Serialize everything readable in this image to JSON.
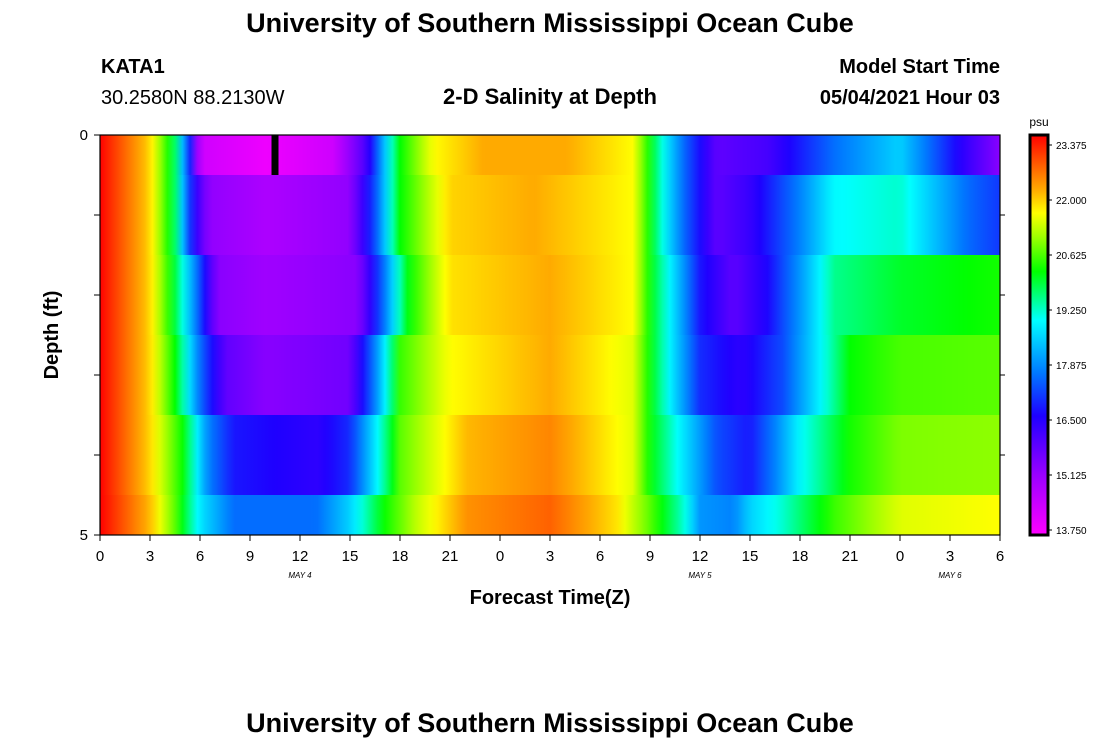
{
  "page": {
    "title_top": "University of Southern Mississippi Ocean Cube",
    "title_bottom": "University of Southern Mississippi Ocean Cube",
    "station_id": "KATA1",
    "station_coords": "30.2580N  88.2130W",
    "plot_title": "2-D Salinity at Depth",
    "model_start_label": "Model Start Time",
    "model_start_value": "05/04/2021 Hour 03"
  },
  "chart_data": {
    "type": "heatmap",
    "title": "2-D Salinity at Depth",
    "xlabel": "Forecast Time(Z)",
    "ylabel": "Depth (ft)",
    "x_tick_labels": [
      "0",
      "3",
      "6",
      "9",
      "12",
      "15",
      "18",
      "21",
      "0",
      "3",
      "6",
      "9",
      "12",
      "15",
      "18",
      "21",
      "0",
      "3",
      "6"
    ],
    "x_range_hours": [
      0,
      54
    ],
    "date_labels": [
      {
        "text": "MAY 4",
        "hour": 12
      },
      {
        "text": "MAY 5",
        "hour": 36
      },
      {
        "text": "MAY 6",
        "hour": 51
      }
    ],
    "y_range_ft": [
      0,
      5
    ],
    "y_tick_labels": [
      {
        "value": 0,
        "label": "0"
      },
      {
        "value": 5,
        "label": "5"
      }
    ],
    "y_minor_ticks": [
      1,
      2,
      3,
      4
    ],
    "current_time_marker_hour": 10.5,
    "colorbar": {
      "unit": "psu",
      "min": 13.75,
      "max": 24.0,
      "tick_labels": [
        "23.375",
        "22.000",
        "20.625",
        "19.250",
        "17.875",
        "16.500",
        "15.125",
        "13.750"
      ],
      "stops": [
        {
          "value": 13.75,
          "color": "#ff00ff"
        },
        {
          "value": 15.3,
          "color": "#9900ff"
        },
        {
          "value": 16.8,
          "color": "#1e00ff"
        },
        {
          "value": 17.9,
          "color": "#0078ff"
        },
        {
          "value": 19.25,
          "color": "#00ffff"
        },
        {
          "value": 20.5,
          "color": "#00ff00"
        },
        {
          "value": 21.4,
          "color": "#a0ff00"
        },
        {
          "value": 22.0,
          "color": "#ffff00"
        },
        {
          "value": 22.6,
          "color": "#ffaa00"
        },
        {
          "value": 23.3,
          "color": "#ff5500"
        },
        {
          "value": 24.0,
          "color": "#ff0000"
        }
      ]
    },
    "layers": [
      {
        "depth_range_ft": [
          0.0,
          0.5
        ],
        "hours": [
          0,
          3,
          4.5,
          5.5,
          6,
          10,
          14,
          16,
          17,
          18,
          20,
          23,
          28,
          32,
          33,
          34,
          35,
          37,
          40,
          44,
          48,
          52,
          54
        ],
        "values": [
          24,
          22.3,
          20.0,
          16.8,
          14.5,
          14.0,
          14.5,
          16.3,
          18.5,
          20.5,
          22.0,
          22.6,
          22.6,
          22.0,
          20.5,
          19.0,
          17.8,
          16.0,
          16.3,
          17.8,
          18.8,
          16.5,
          15.5
        ]
      },
      {
        "depth_range_ft": [
          0.5,
          1.5
        ],
        "hours": [
          0,
          3,
          4.5,
          5.5,
          6.5,
          10,
          15,
          16.5,
          18,
          21,
          26,
          32,
          33,
          34,
          35,
          37,
          39,
          42,
          44,
          48,
          52,
          54
        ],
        "values": [
          24,
          22.3,
          20.0,
          17.0,
          15.4,
          15.0,
          15.4,
          17.5,
          20.5,
          22.3,
          22.6,
          22.0,
          20.5,
          19.0,
          17.8,
          16.0,
          16.5,
          18.0,
          19.2,
          19.5,
          17.8,
          17.3
        ]
      },
      {
        "depth_range_ft": [
          1.5,
          2.5
        ],
        "hours": [
          0,
          3,
          4.5,
          6,
          7,
          10,
          15.5,
          17,
          18.5,
          21,
          27,
          32,
          33,
          34.5,
          36,
          38,
          40,
          42,
          44,
          48,
          54
        ],
        "values": [
          24,
          22.3,
          20.2,
          17.5,
          15.5,
          15.2,
          15.5,
          17.8,
          20.5,
          22.2,
          22.6,
          22.0,
          20.5,
          18.8,
          17.0,
          16.0,
          16.8,
          18.2,
          19.8,
          20.3,
          20.6
        ]
      },
      {
        "depth_range_ft": [
          2.5,
          3.5
        ],
        "hours": [
          0,
          3,
          4.5,
          6,
          7.5,
          10,
          15,
          16.5,
          18,
          21,
          27,
          32,
          33,
          34.5,
          36,
          38.5,
          41,
          43,
          45,
          48,
          54
        ],
        "values": [
          24,
          22.3,
          20.5,
          17.8,
          16.0,
          15.5,
          15.8,
          18.0,
          20.8,
          22.0,
          22.6,
          21.8,
          20.5,
          18.8,
          17.2,
          16.6,
          17.5,
          19.0,
          20.5,
          20.9,
          21.0
        ]
      },
      {
        "depth_range_ft": [
          3.5,
          4.5
        ],
        "hours": [
          0,
          3,
          5,
          6.5,
          8,
          13,
          15,
          16.5,
          18,
          22,
          27,
          32,
          33,
          35,
          37,
          39,
          40.5,
          42,
          45,
          48,
          54
        ],
        "values": [
          24,
          22.3,
          20.5,
          18.0,
          17.0,
          16.6,
          17.2,
          19.0,
          21.0,
          22.5,
          22.9,
          21.8,
          20.5,
          19.0,
          17.5,
          17.0,
          18.0,
          19.2,
          20.6,
          21.2,
          21.3
        ]
      },
      {
        "depth_range_ft": [
          4.5,
          5.0
        ],
        "hours": [
          0,
          3,
          4.5,
          6,
          8,
          13,
          15,
          17,
          19,
          22,
          27,
          31,
          33,
          35,
          36,
          38,
          39,
          41,
          44,
          48,
          54
        ],
        "values": [
          24,
          22.5,
          21.0,
          19.0,
          17.8,
          17.8,
          18.8,
          20.5,
          21.6,
          22.8,
          23.2,
          22.2,
          21.0,
          19.5,
          18.2,
          18.0,
          18.8,
          19.5,
          20.8,
          21.8,
          22.0
        ]
      }
    ]
  }
}
